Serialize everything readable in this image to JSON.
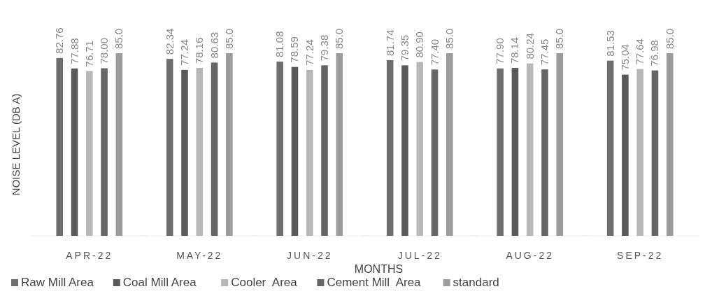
{
  "chart_data": {
    "type": "bar",
    "xlabel": "MONTHS",
    "ylabel": "NOISE LEVEL (DB A)",
    "categories": [
      "APR-22",
      "MAY-22",
      "JUN-22",
      "JUL-22",
      "AUG-22",
      "SEP-22"
    ],
    "series": [
      {
        "name": "Raw Mill Area",
        "color": "#6e6e6e",
        "values": [
          82.76,
          82.34,
          81.08,
          81.74,
          77.9,
          81.53
        ],
        "value_labels": [
          "82.76",
          "82.34",
          "81.08",
          "81.74",
          "77.90",
          "81.53"
        ]
      },
      {
        "name": "Coal Mill Area",
        "color": "#5a5a5a",
        "values": [
          77.88,
          77.24,
          78.59,
          79.35,
          78.14,
          75.04
        ],
        "value_labels": [
          "77.88",
          "77.24",
          "78.59",
          "79.35",
          "78.14",
          "75.04"
        ]
      },
      {
        "name": "Cooler  Area",
        "color": "#b8b8b8",
        "values": [
          76.71,
          78.16,
          77.24,
          80.9,
          80.24,
          77.64
        ],
        "value_labels": [
          "76.71",
          "78.16",
          "77.24",
          "80.90",
          "80.24",
          "77.64"
        ]
      },
      {
        "name": "Cement Mill  Area",
        "color": "#666666",
        "values": [
          78.0,
          80.63,
          79.38,
          77.4,
          77.45,
          76.98
        ],
        "value_labels": [
          "78.00",
          "80.63",
          "79.38",
          "77.40",
          "77.45",
          "76.98"
        ]
      },
      {
        "name": "standard",
        "color": "#9c9c9c",
        "values": [
          85.0,
          85.0,
          85.0,
          85.0,
          85.0,
          85.0
        ],
        "value_labels": [
          "85.0",
          "85.0",
          "85.0",
          "85.0",
          "85.0",
          "85.0"
        ]
      }
    ],
    "legend": "bottom"
  }
}
